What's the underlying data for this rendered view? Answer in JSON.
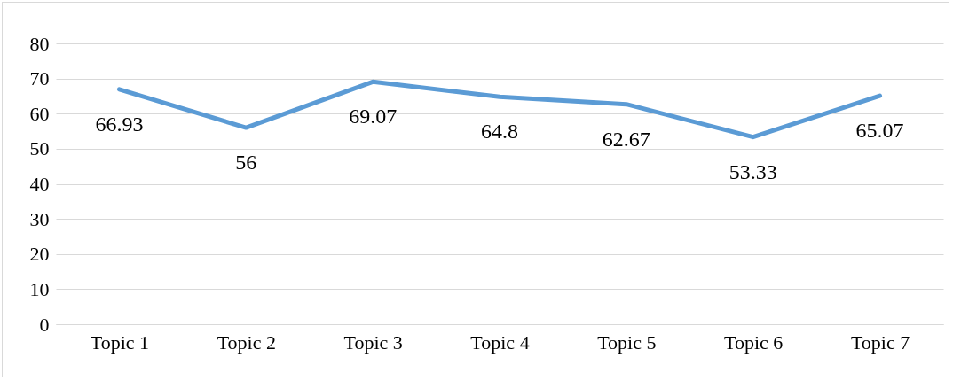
{
  "chart_data": {
    "type": "line",
    "categories": [
      "Topic 1",
      "Topic 2",
      "Topic 3",
      "Topic 4",
      "Topic 5",
      "Topic 6",
      "Topic 7"
    ],
    "series": [
      {
        "color": "#5b9bd5",
        "values": [
          66.93,
          56,
          69.07,
          64.8,
          62.67,
          53.33,
          65.07
        ]
      }
    ],
    "ylim": [
      0,
      80
    ],
    "yticks": [
      0,
      10,
      20,
      30,
      40,
      50,
      60,
      70,
      80
    ],
    "grid": "y",
    "data_labels": true
  }
}
